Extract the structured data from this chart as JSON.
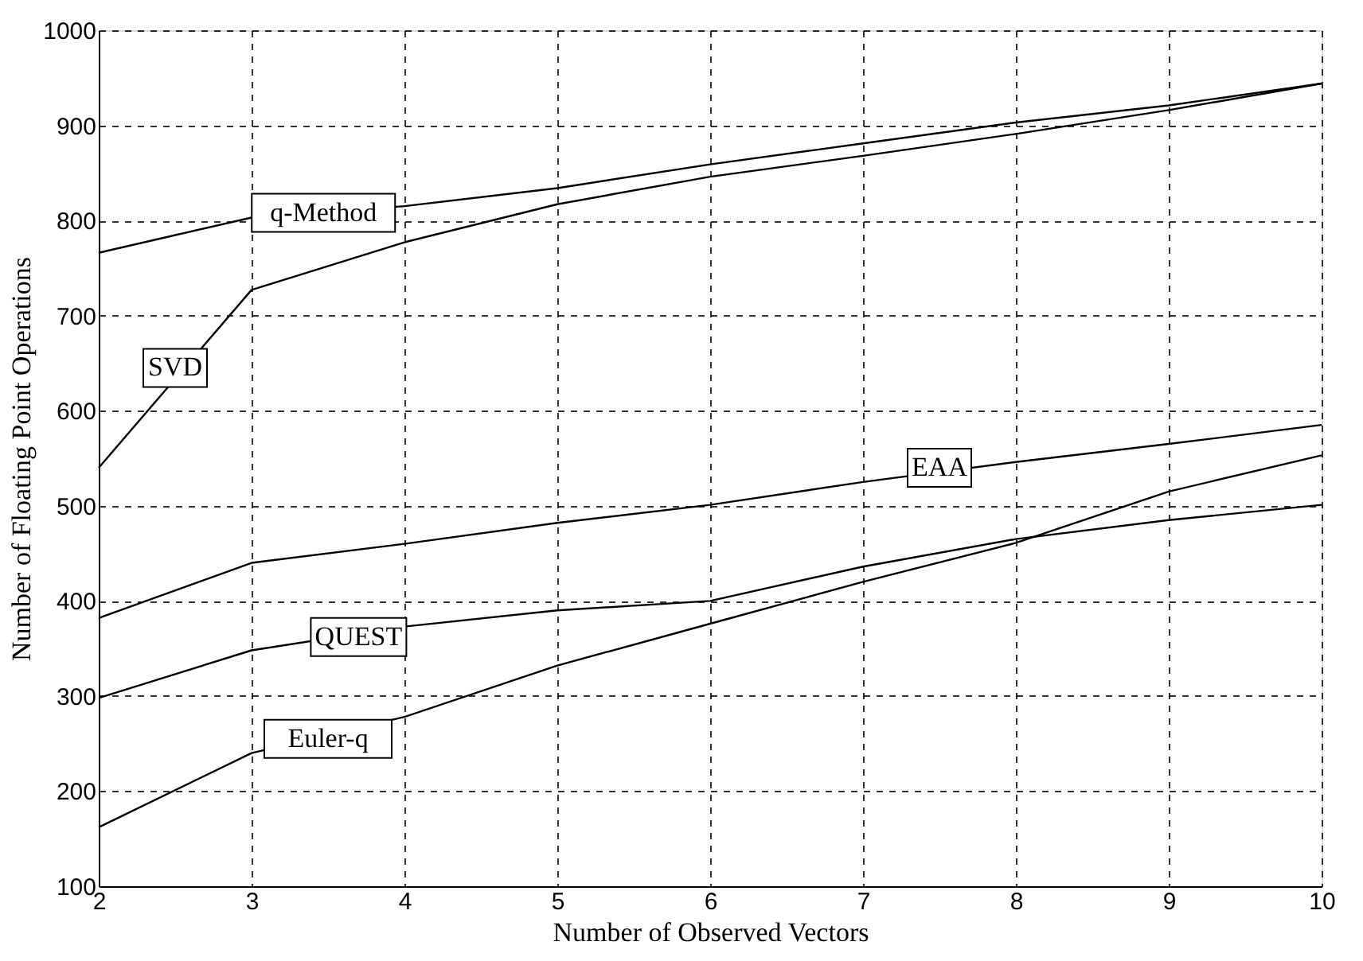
{
  "chart_data": {
    "type": "line",
    "xlabel": "Number of Observed Vectors",
    "ylabel": "Number of Floating Point Operations",
    "x": [
      2,
      3,
      4,
      5,
      6,
      7,
      8,
      9,
      10
    ],
    "series": [
      {
        "color": "#000000",
        "values": [
          766,
          803,
          815,
          834,
          859,
          881,
          903,
          921,
          944
        ]
      },
      {
        "color": "#000000",
        "values": [
          540,
          727,
          777,
          817,
          846,
          868,
          891,
          916,
          944
        ]
      },
      {
        "color": "#000000",
        "values": [
          382,
          440,
          460,
          482,
          501,
          525,
          546,
          565,
          585
        ]
      },
      {
        "color": "#000000",
        "values": [
          298,
          348,
          373,
          390,
          400,
          436,
          465,
          485,
          501
        ]
      },
      {
        "color": "#000000",
        "values": [
          162,
          240,
          278,
          332,
          376,
          420,
          461,
          515,
          553
        ]
      }
    ],
    "annotations": [
      {
        "text": "q-Method",
        "x": 3.47,
        "y": 808
      },
      {
        "text": "SVD",
        "x": 2.5,
        "y": 645
      },
      {
        "text": "EAA",
        "x": 7.5,
        "y": 540
      },
      {
        "text": "QUEST",
        "x": 3.7,
        "y": 362
      },
      {
        "text": "Euler-q",
        "x": 3.5,
        "y": 255
      }
    ],
    "xlim": [
      2,
      10
    ],
    "xticks": [
      2,
      3,
      4,
      5,
      6,
      7,
      8,
      9,
      10
    ],
    "ylim": [
      100,
      1000
    ],
    "yticks": [
      100,
      200,
      300,
      400,
      500,
      600,
      700,
      800,
      900,
      1000
    ],
    "grid": true,
    "line_style": "solid",
    "marker": "none"
  }
}
